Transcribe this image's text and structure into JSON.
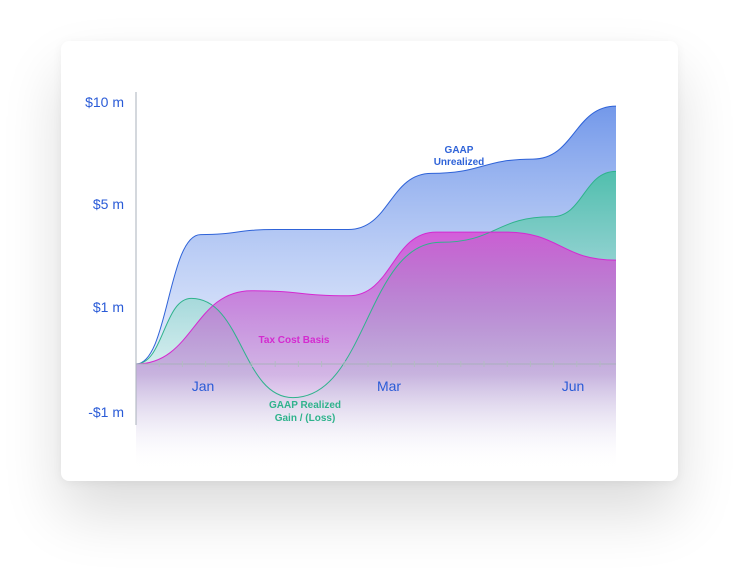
{
  "colors": {
    "unrealized": "#2f63d8",
    "tax": "#d42ad0",
    "realized": "#2fb38c",
    "axis": "#a9b0bb",
    "tick_text": "#2a5bd7"
  },
  "chart_data": {
    "type": "area",
    "title": "",
    "xlabel": "",
    "ylabel": "",
    "y_ticks": [
      "$10 m",
      "$5 m",
      "$1 m",
      "-$1 m"
    ],
    "x_ticks": [
      "Jan",
      "Mar",
      "Jun"
    ],
    "series_labels": {
      "unrealized": [
        "GAAP",
        "Unrealized"
      ],
      "tax": [
        "Tax Cost Basis"
      ],
      "realized": [
        "GAAP Realized",
        "Gain / (Loss)"
      ]
    },
    "ylim": [
      -1,
      10
    ],
    "grid": false,
    "series": [
      {
        "key": "unrealized",
        "color": "#2f63d8",
        "x": [
          0,
          0.7,
          1.5,
          2.3,
          3.2,
          4.3,
          5.2
        ],
        "values": [
          0,
          3.8,
          4.0,
          4.0,
          6.5,
          7.2,
          9.8
        ]
      },
      {
        "key": "tax",
        "color": "#d42ad0",
        "x": [
          0,
          1.25,
          2.3,
          3.25,
          4.0,
          5.2
        ],
        "values": [
          0,
          1.6,
          1.4,
          3.9,
          3.9,
          2.8
        ]
      },
      {
        "key": "realized",
        "color": "#2fb38c",
        "x": [
          0,
          0.6,
          1.7,
          3.3,
          4.5,
          5.2
        ],
        "values": [
          0,
          1.3,
          -0.7,
          3.5,
          4.5,
          6.6
        ]
      }
    ]
  }
}
